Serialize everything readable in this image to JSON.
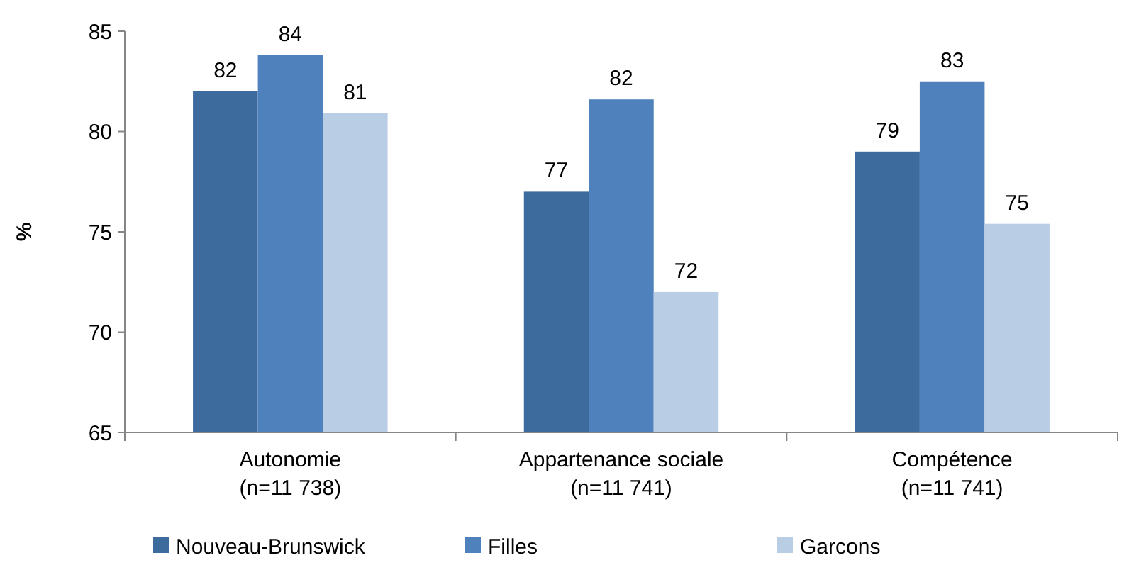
{
  "chart_data": {
    "type": "bar",
    "ylabel": "%",
    "categories": [
      "Autonomie\n(n=11 738)",
      "Appartenance sociale\n(n=11 741)",
      "Compétence\n(n=11 741)"
    ],
    "series": [
      {
        "name": "Nouveau-Brunswick",
        "color": "#3e6b9e",
        "values": [
          82,
          77,
          79
        ],
        "value_labels": [
          "82",
          "77",
          "79"
        ]
      },
      {
        "name": "Filles",
        "color": "#4f81bd",
        "values": [
          83.8,
          81.6,
          82.5
        ],
        "value_labels": [
          "84",
          "82",
          "83"
        ]
      },
      {
        "name": "Garcons",
        "color": "#b9cde5",
        "values": [
          80.9,
          72,
          75.4
        ],
        "value_labels": [
          "81",
          "72",
          "75"
        ]
      }
    ],
    "ylim": [
      65,
      85
    ],
    "yticks": [
      65,
      70,
      75,
      80,
      85
    ],
    "grid": false,
    "legend": "bottom"
  }
}
